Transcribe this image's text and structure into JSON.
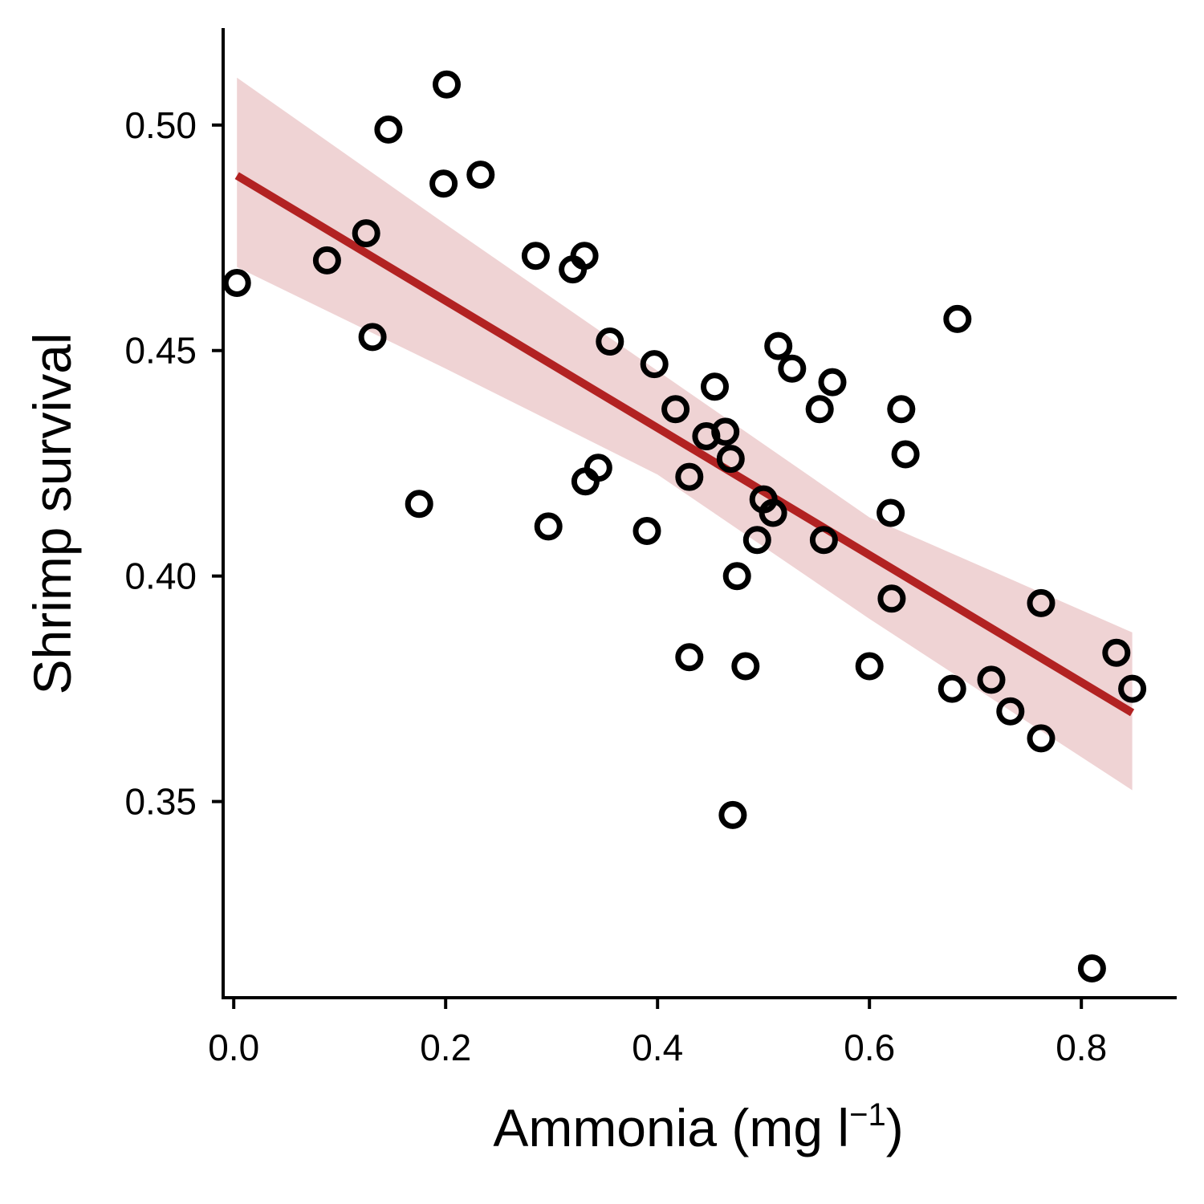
{
  "chart_data": {
    "type": "scatter",
    "xlabel": "Ammonia",
    "xlabel_unit_open": " (mg l",
    "xlabel_unit_sup": "−1",
    "xlabel_unit_close": ")",
    "ylabel": "Shrimp survival",
    "xlim": [
      -0.01,
      0.89
    ],
    "ylim": [
      0.3065,
      0.5215
    ],
    "x_ticks": [
      0.0,
      0.2,
      0.4,
      0.6,
      0.8
    ],
    "x_tick_labels": [
      "0.0",
      "0.2",
      "0.4",
      "0.6",
      "0.8"
    ],
    "y_ticks": [
      0.35,
      0.4,
      0.45,
      0.5
    ],
    "y_tick_labels": [
      "0.35",
      "0.40",
      "0.45",
      "0.50"
    ],
    "grid": false,
    "legend": "none",
    "points": {
      "x": [
        0.003,
        0.088,
        0.125,
        0.131,
        0.146,
        0.175,
        0.198,
        0.201,
        0.233,
        0.285,
        0.297,
        0.32,
        0.331,
        0.332,
        0.344,
        0.355,
        0.39,
        0.397,
        0.417,
        0.43,
        0.43,
        0.446,
        0.454,
        0.464,
        0.469,
        0.471,
        0.475,
        0.483,
        0.494,
        0.5,
        0.509,
        0.514,
        0.527,
        0.553,
        0.557,
        0.565,
        0.6,
        0.62,
        0.621,
        0.63,
        0.634,
        0.678,
        0.683,
        0.715,
        0.733,
        0.762,
        0.762,
        0.81,
        0.833,
        0.848
      ],
      "y": [
        0.465,
        0.47,
        0.476,
        0.453,
        0.499,
        0.416,
        0.487,
        0.509,
        0.489,
        0.471,
        0.411,
        0.468,
        0.471,
        0.421,
        0.424,
        0.452,
        0.41,
        0.447,
        0.437,
        0.422,
        0.382,
        0.431,
        0.442,
        0.432,
        0.426,
        0.347,
        0.4,
        0.38,
        0.408,
        0.417,
        0.414,
        0.451,
        0.446,
        0.437,
        0.408,
        0.443,
        0.38,
        0.414,
        0.395,
        0.437,
        0.427,
        0.375,
        0.457,
        0.377,
        0.37,
        0.394,
        0.364,
        0.313,
        0.383,
        0.375
      ]
    },
    "fit_line": {
      "x": [
        0.003,
        0.848
      ],
      "y": [
        0.4888,
        0.3697
      ]
    },
    "confidence_band": {
      "x": [
        0.003,
        0.2,
        0.4,
        0.6,
        0.848
      ],
      "upper": [
        0.5105,
        0.478,
        0.4455,
        0.413,
        0.3875
      ],
      "lower": [
        0.4685,
        0.446,
        0.4225,
        0.3905,
        0.3525
      ]
    },
    "colors": {
      "points": "#000000",
      "fit_line": "#b22222",
      "band": "#efd3d4",
      "axes": "#000000"
    }
  }
}
